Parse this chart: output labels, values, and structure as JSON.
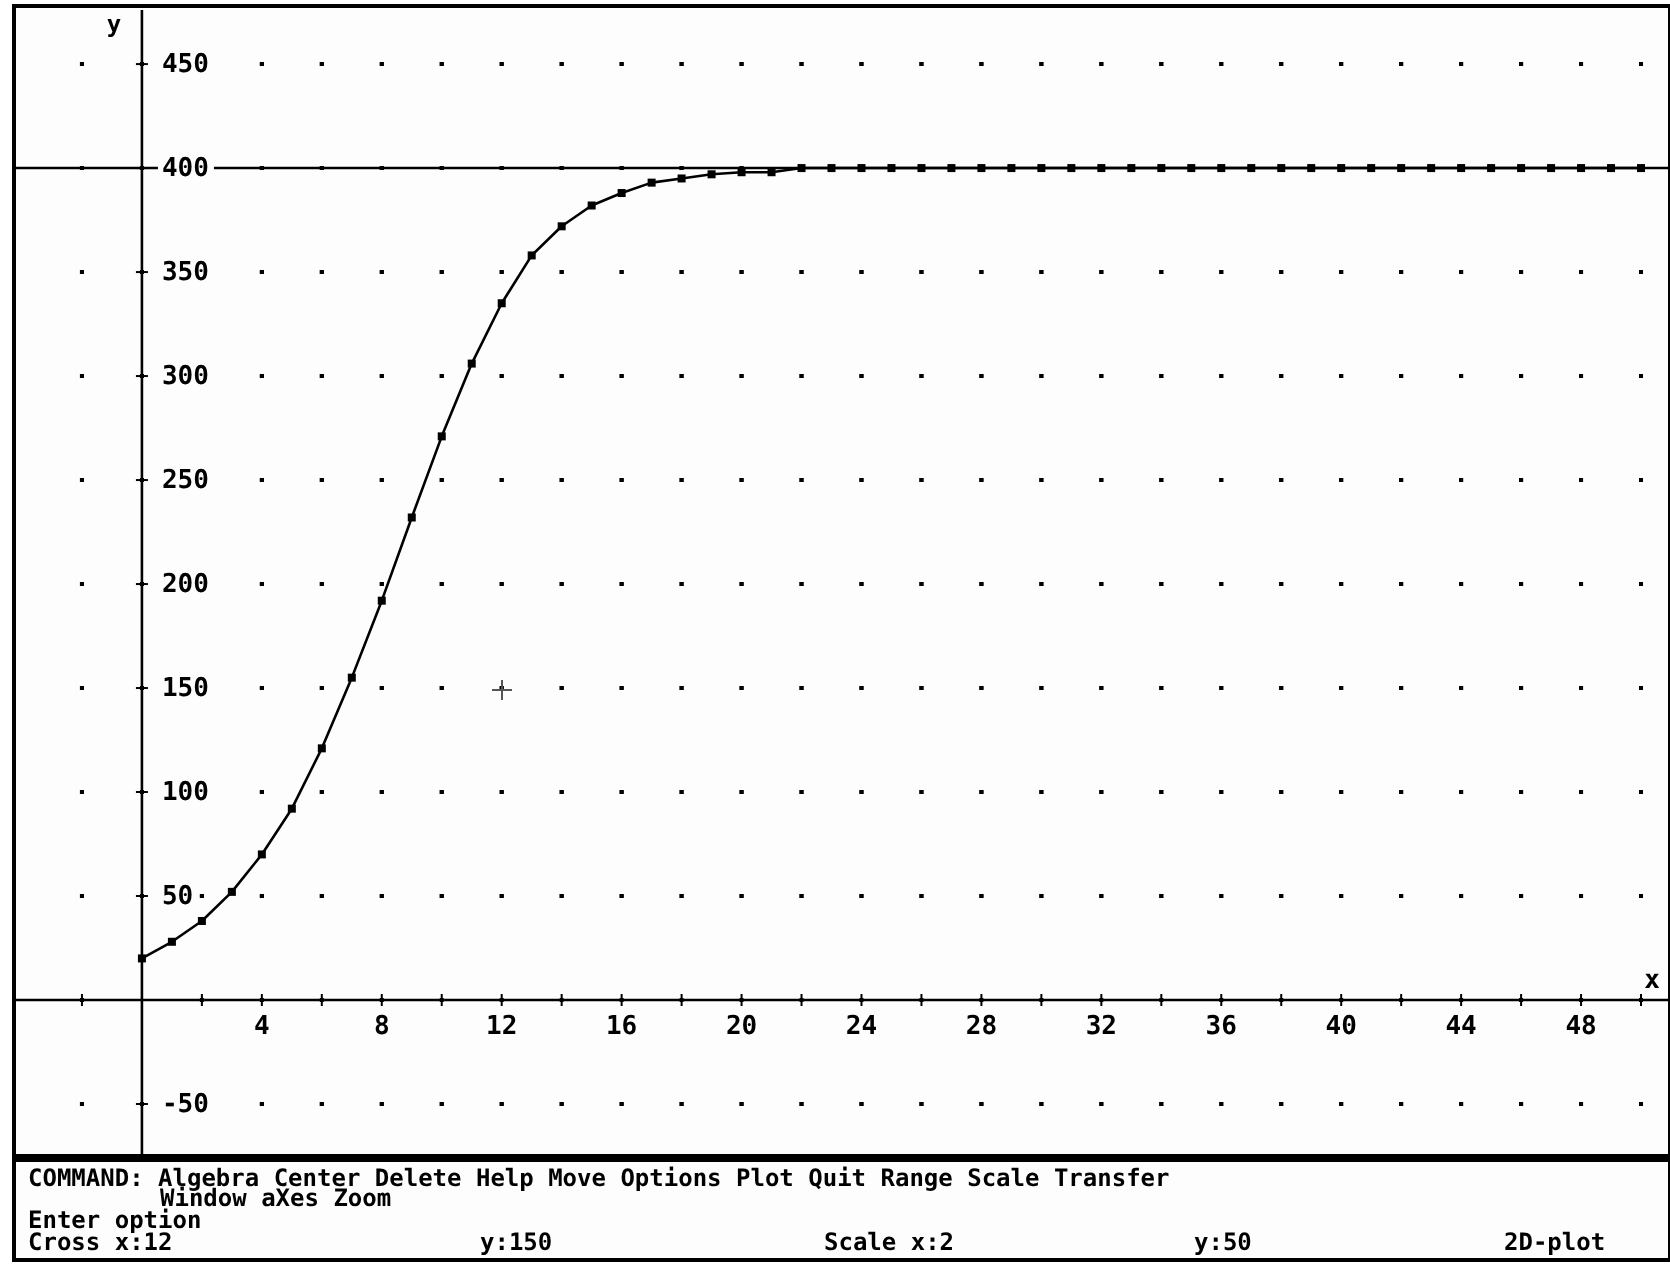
{
  "chart_data": {
    "type": "line",
    "xlabel": "x",
    "ylabel": "y",
    "x": [
      0,
      1,
      2,
      3,
      4,
      5,
      6,
      7,
      8,
      9,
      10,
      11,
      12,
      13,
      14,
      15,
      16,
      17,
      18,
      19,
      20,
      21,
      22,
      23,
      24,
      25,
      26,
      27,
      28,
      29,
      30,
      31,
      32,
      33,
      34,
      35,
      36,
      37,
      38,
      39,
      40,
      41,
      42,
      43,
      44,
      45,
      46,
      47,
      48,
      49,
      50
    ],
    "series": [
      {
        "color": "#000000",
        "values": [
          20,
          28,
          38,
          52,
          70,
          92,
          121,
          155,
          192,
          232,
          271,
          306,
          335,
          358,
          372,
          382,
          388,
          393,
          395,
          397,
          398,
          398,
          400,
          400,
          400,
          400,
          400,
          400,
          400,
          400,
          400,
          400,
          400,
          400,
          400,
          400,
          400,
          400,
          400,
          400,
          400,
          400,
          400,
          400,
          400,
          400,
          400,
          400,
          400,
          400,
          400
        ]
      }
    ],
    "xlim": [
      -4.2,
      50.9
    ],
    "ylim": [
      -75,
      476
    ],
    "xticks": [
      {
        "value": -2,
        "label": null
      },
      {
        "value": 2,
        "label": null
      },
      4,
      {
        "value": 6,
        "label": null
      },
      8,
      {
        "value": 10,
        "label": null
      },
      12,
      {
        "value": 14,
        "label": null
      },
      16,
      {
        "value": 18,
        "label": null
      },
      20,
      {
        "value": 22,
        "label": null
      },
      24,
      {
        "value": 26,
        "label": null
      },
      28,
      {
        "value": 30,
        "label": null
      },
      32,
      {
        "value": 34,
        "label": null
      },
      36,
      {
        "value": 38,
        "label": null
      },
      40,
      {
        "value": 42,
        "label": null
      },
      44,
      {
        "value": 46,
        "label": null
      },
      48,
      {
        "value": 50,
        "label": null
      }
    ],
    "yticks": [
      -50,
      50,
      100,
      150,
      200,
      250,
      300,
      350,
      400,
      450
    ],
    "ref_lines": [
      {
        "axis": "y",
        "value": 400,
        "color": "#000000"
      }
    ],
    "grid": true,
    "marker": "square",
    "line_style": "solid",
    "annotations": [
      "COMMAND: Algebra Center Delete Help Move Options Plot Quit Range Scale Transfer",
      "Window aXes Zoom",
      "Enter option",
      "Cross x:12",
      "y:150",
      "Scale x:2",
      "y:50",
      "2D-plot"
    ]
  }
}
